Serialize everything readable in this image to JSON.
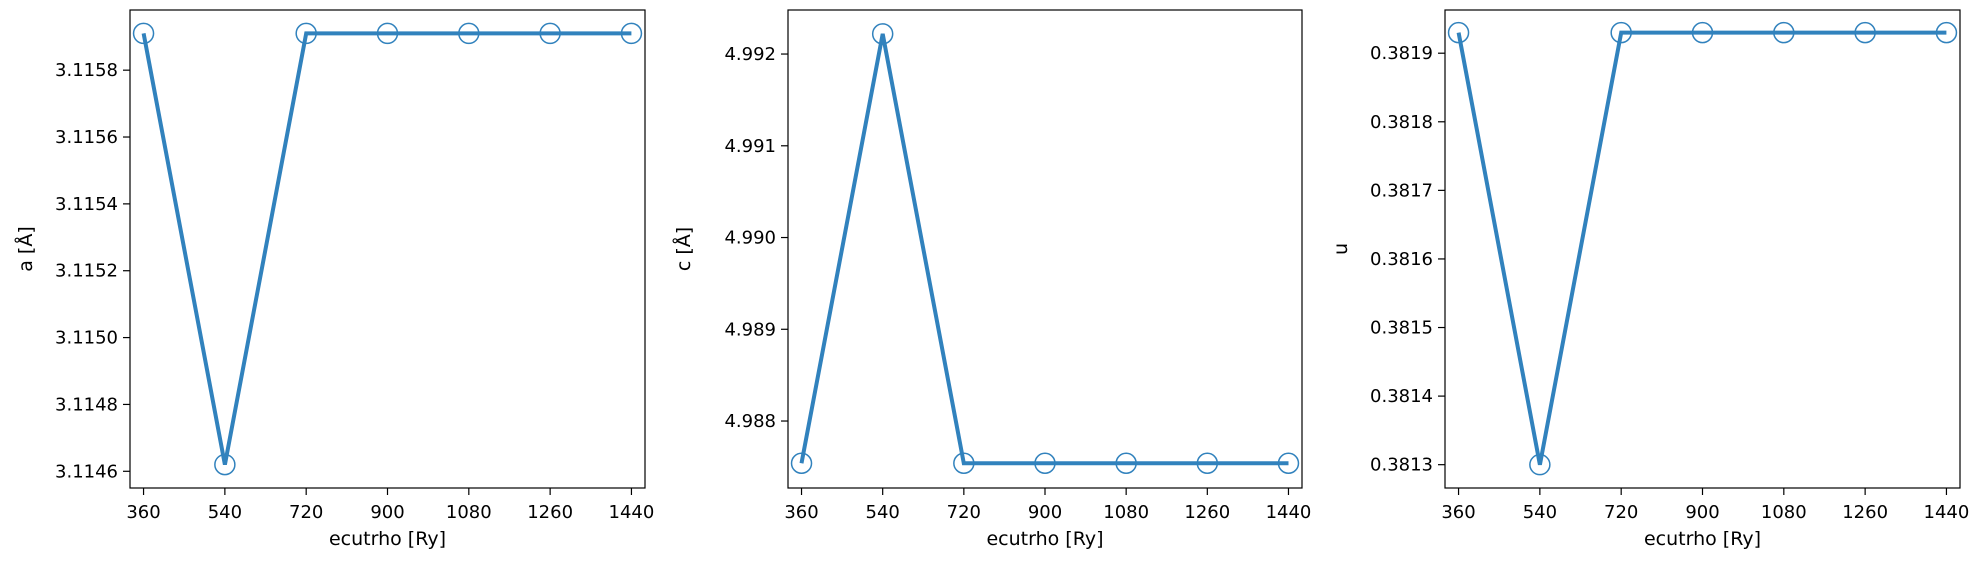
{
  "chart_data": [
    {
      "type": "line",
      "xlabel": "ecutrho [Ry]",
      "ylabel": "a [Å]",
      "x": [
        360,
        540,
        720,
        900,
        1080,
        1260,
        1440
      ],
      "xticks": [
        "360",
        "540",
        "720",
        "900",
        "1080",
        "1260",
        "1440"
      ],
      "y": [
        3.11591,
        3.11462,
        3.11591,
        3.11591,
        3.11591,
        3.11591,
        3.11591
      ],
      "yticks": [
        3.1146,
        3.1148,
        3.115,
        3.1152,
        3.1154,
        3.1156,
        3.1158
      ],
      "ytick_labels": [
        "3.1146",
        "3.1148",
        "3.1150",
        "3.1152",
        "3.1154",
        "3.1156",
        "3.1158"
      ],
      "xlim": [
        330,
        1470
      ],
      "ylim": [
        3.11455,
        3.11598
      ],
      "grid": false,
      "marker": "open-circle",
      "color": "#3182bd"
    },
    {
      "type": "line",
      "xlabel": "ecutrho [Ry]",
      "ylabel": "c [Å]",
      "x": [
        360,
        540,
        720,
        900,
        1080,
        1260,
        1440
      ],
      "xticks": [
        "360",
        "540",
        "720",
        "900",
        "1080",
        "1260",
        "1440"
      ],
      "y": [
        4.98754,
        4.99222,
        4.98754,
        4.98754,
        4.98754,
        4.98754,
        4.98754
      ],
      "yticks": [
        4.988,
        4.989,
        4.99,
        4.991,
        4.992
      ],
      "ytick_labels": [
        "4.988",
        "4.989",
        "4.990",
        "4.991",
        "4.992"
      ],
      "xlim": [
        330,
        1470
      ],
      "ylim": [
        4.98727,
        4.99248
      ],
      "grid": false,
      "marker": "open-circle",
      "color": "#3182bd"
    },
    {
      "type": "line",
      "xlabel": "ecutrho [Ry]",
      "ylabel": "u",
      "x": [
        360,
        540,
        720,
        900,
        1080,
        1260,
        1440
      ],
      "xticks": [
        "360",
        "540",
        "720",
        "900",
        "1080",
        "1260",
        "1440"
      ],
      "y": [
        0.38193,
        0.3813,
        0.38193,
        0.38193,
        0.38193,
        0.38193,
        0.38193
      ],
      "yticks": [
        0.3813,
        0.3814,
        0.3815,
        0.3816,
        0.3817,
        0.3818,
        0.3819
      ],
      "ytick_labels": [
        "0.3813",
        "0.3814",
        "0.3815",
        "0.3816",
        "0.3817",
        "0.3818",
        "0.3819"
      ],
      "xlim": [
        330,
        1470
      ],
      "ylim": [
        0.381266,
        0.381963
      ],
      "grid": false,
      "marker": "open-circle",
      "color": "#3182bd"
    }
  ]
}
